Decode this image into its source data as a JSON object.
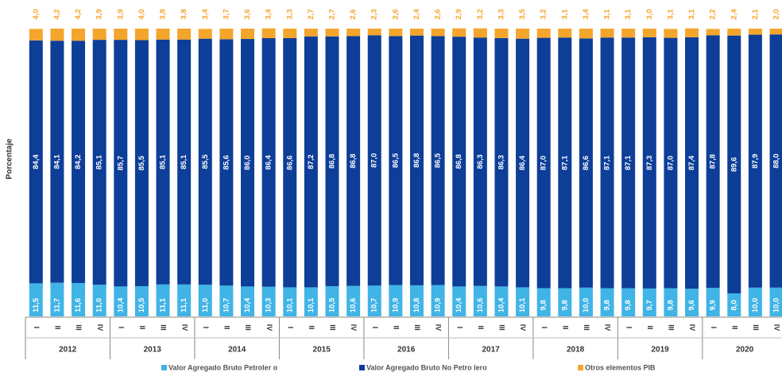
{
  "chart_data": {
    "type": "stacked_bar",
    "y_label": "Porcentaje",
    "categories": [
      "I",
      "II",
      "III",
      "IV",
      "I",
      "II",
      "III",
      "IV",
      "I",
      "II",
      "III",
      "IV",
      "I",
      "II",
      "III",
      "IV",
      "I",
      "II",
      "III",
      "IV",
      "I",
      "II",
      "III",
      "IV",
      "I",
      "II",
      "III",
      "IV",
      "I",
      "II",
      "III",
      "IV",
      "I",
      "II",
      "III",
      "IV"
    ],
    "groups": [
      "2012",
      "2013",
      "2014",
      "2015",
      "2016",
      "2017",
      "2018",
      "2019",
      "2020"
    ],
    "ylim": [
      0,
      100
    ],
    "legend": "bottom",
    "series": [
      {
        "name": "Valor Agregado Bruto Petroler o",
        "color": "#40b4e6",
        "values": [
          11.5,
          11.7,
          11.6,
          11.0,
          10.4,
          10.5,
          11.1,
          11.1,
          11.0,
          10.7,
          10.4,
          10.3,
          10.1,
          10.1,
          10.5,
          10.6,
          10.7,
          10.9,
          10.8,
          10.9,
          10.4,
          10.6,
          10.4,
          10.1,
          9.8,
          9.8,
          10.0,
          9.8,
          9.8,
          9.7,
          9.8,
          9.6,
          9.9,
          8.0,
          10.0,
          10.0
        ],
        "value_labels": [
          "11,5",
          "11,7",
          "11,6",
          "11,0",
          "10,4",
          "10,5",
          "11,1",
          "11,1",
          "11,0",
          "10,7",
          "10,4",
          "10,3",
          "10,1",
          "10,1",
          "10,5",
          "10,6",
          "10,7",
          "10,9",
          "10,8",
          "10,9",
          "10,4",
          "10,6",
          "10,4",
          "10,1",
          "9,8",
          "9,8",
          "10,0",
          "9,8",
          "9,8",
          "9,7",
          "9,8",
          "9,6",
          "9,9",
          "8,0",
          "10,0",
          "10,0"
        ]
      },
      {
        "name": "Valor Agregado Bruto No Petro lero",
        "color": "#0d3e98",
        "values": [
          84.4,
          84.1,
          84.2,
          85.1,
          85.7,
          85.5,
          85.1,
          85.1,
          85.5,
          85.6,
          86.0,
          86.4,
          86.6,
          87.2,
          86.8,
          86.8,
          87.0,
          86.5,
          86.8,
          86.5,
          86.8,
          86.3,
          86.3,
          86.4,
          87.0,
          87.1,
          86.6,
          87.1,
          87.1,
          87.3,
          87.0,
          87.4,
          87.8,
          89.6,
          87.9,
          88.0
        ],
        "value_labels": [
          "84,4",
          "84,1",
          "84,2",
          "85,1",
          "85,7",
          "85,5",
          "85,1",
          "85,1",
          "85,5",
          "85,6",
          "86,0",
          "86,4",
          "86,6",
          "87,2",
          "86,8",
          "86,8",
          "87,0",
          "86,5",
          "86,8",
          "86,5",
          "86,8",
          "86,3",
          "86,3",
          "86,4",
          "87,0",
          "87,1",
          "86,6",
          "87,1",
          "87,1",
          "87,3",
          "87,0",
          "87,4",
          "87,8",
          "89,6",
          "87,9",
          "88,0"
        ]
      },
      {
        "name": "Otros elementos PIB",
        "color": "#f4a52c",
        "values": [
          4.0,
          4.2,
          4.2,
          3.9,
          3.9,
          4.0,
          3.8,
          3.8,
          3.4,
          3.7,
          3.6,
          3.4,
          3.3,
          2.7,
          2.7,
          2.6,
          2.3,
          2.6,
          2.4,
          2.6,
          2.9,
          3.2,
          3.3,
          3.5,
          3.2,
          3.1,
          3.4,
          3.1,
          3.1,
          3.0,
          3.1,
          3.1,
          2.2,
          2.4,
          2.1,
          2.0
        ],
        "value_labels": [
          "4,0",
          "4,2",
          "4,2",
          "3,9",
          "3,9",
          "4,0",
          "3,8",
          "3,8",
          "3,4",
          "3,7",
          "3,6",
          "3,4",
          "3,3",
          "2,7",
          "2,7",
          "2,6",
          "2,3",
          "2,6",
          "2,4",
          "2,6",
          "2,9",
          "3,2",
          "3,3",
          "3,5",
          "3,2",
          "3,1",
          "3,4",
          "3,1",
          "3,1",
          "3,0",
          "3,1",
          "3,1",
          "2,2",
          "2,4",
          "2,1",
          "2,0"
        ]
      }
    ]
  }
}
